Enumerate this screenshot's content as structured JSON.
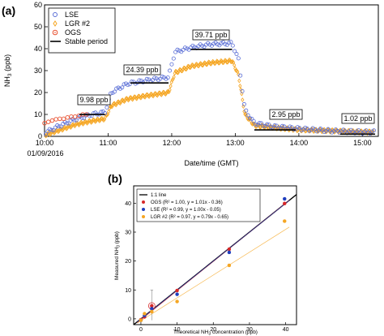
{
  "chart_data": [
    {
      "panel": "(a)",
      "type": "scatter",
      "xlabel": "Date/time (GMT)",
      "ylabel": "NH3 (ppb)",
      "xlim": [
        10.0,
        15.25
      ],
      "ylim": [
        0,
        60
      ],
      "x_ticks": [
        "10:00",
        "11:00",
        "12:00",
        "13:00",
        "14:00",
        "15:00"
      ],
      "x_date_label": "01/09/2016",
      "y_ticks": [
        0,
        10,
        20,
        30,
        40,
        50,
        60
      ],
      "legend": {
        "position": "top-left",
        "entries": [
          "LSE",
          "LGR #2",
          "OGS",
          "Stable period"
        ]
      },
      "series": [
        {
          "name": "LSE",
          "color": "#5b6fd6",
          "marker": "open-circle",
          "x": [
            10.0,
            10.25,
            10.5,
            10.75,
            10.95,
            11.05,
            11.3,
            11.6,
            11.95,
            12.05,
            12.3,
            12.6,
            12.95,
            13.05,
            13.15,
            13.3,
            13.6,
            14.0,
            14.5,
            15.0,
            15.15
          ],
          "y": [
            1.5,
            5,
            8,
            10,
            11,
            20,
            24,
            25.5,
            27,
            38.5,
            40.5,
            42,
            42.5,
            35,
            12,
            6,
            4.5,
            3.5,
            2.5,
            2,
            2
          ]
        },
        {
          "name": "LGR #2",
          "color": "#f5a623",
          "marker": "open-diamond",
          "x": [
            10.0,
            10.25,
            10.5,
            10.75,
            10.95,
            11.05,
            11.3,
            11.6,
            11.95,
            12.05,
            12.3,
            12.6,
            12.95,
            13.05,
            13.15,
            13.3,
            13.6,
            14.0,
            14.5,
            15.0,
            15.15
          ],
          "y": [
            0.5,
            3,
            5.5,
            7,
            8,
            14,
            17,
            18.5,
            20,
            29,
            32,
            33.5,
            34.5,
            28,
            10,
            5,
            4,
            3,
            2.5,
            2,
            2
          ]
        },
        {
          "name": "OGS",
          "color": "#e8502f",
          "marker": "open-circle-dot",
          "x": [
            10.0,
            10.1,
            10.2,
            10.3,
            10.4,
            10.5,
            10.6,
            10.7
          ],
          "y": [
            6,
            7,
            8,
            8,
            9,
            9,
            10,
            10
          ]
        },
        {
          "name": "Stable period",
          "color": "#000000",
          "marker": "line",
          "segments": [
            [
              10.55,
              10.95,
              9.98
            ],
            [
              11.35,
              11.95,
              24.39
            ],
            [
              12.3,
              12.95,
              39.71
            ],
            [
              13.3,
              13.95,
              2.95
            ],
            [
              14.65,
              15.2,
              1.02
            ]
          ]
        }
      ],
      "annotations": [
        "9.98 ppb",
        "24.39 ppb",
        "39.71 ppb",
        "2.95 ppb",
        "1.02 ppb"
      ]
    },
    {
      "panel": "(b)",
      "type": "scatter",
      "xlabel": "Theoretical NH3 concentration (ppb)",
      "ylabel": "Measured NH3 (ppb)",
      "xlim": [
        -2,
        43
      ],
      "ylim": [
        -2,
        46
      ],
      "x_ticks": [
        0,
        10,
        20,
        30,
        40
      ],
      "y_ticks": [
        0,
        10,
        20,
        30,
        40
      ],
      "legend": {
        "position": "top-left",
        "entries": [
          "1:1 line",
          "OGS (R² = 1.00, y = 1.01x - 0.36)",
          "LSE (R² = 0.99, y = 1.00x - 0.05)",
          "LGR #2 (R² = 0.97, y = 0.79x - 0.65)"
        ]
      },
      "series": [
        {
          "name": "1:1 line",
          "color": "#000000",
          "type": "line",
          "x": [
            -2,
            43
          ],
          "y": [
            -2,
            43
          ]
        },
        {
          "name": "OGS",
          "color": "#d62728",
          "x": [
            0,
            1,
            3,
            10,
            24.4,
            39.7
          ],
          "y": [
            -0.3,
            0.7,
            4.5,
            9.8,
            24.1,
            39.9
          ],
          "fit": {
            "slope": 1.01,
            "intercept": -0.36
          }
        },
        {
          "name": "LSE",
          "color": "#1f3fbf",
          "x": [
            0,
            1,
            3,
            10,
            24.4,
            39.7
          ],
          "y": [
            -0.5,
            1.2,
            3.5,
            8.5,
            23,
            41.5
          ],
          "fit": {
            "slope": 1.0,
            "intercept": -0.05
          }
        },
        {
          "name": "LGR #2",
          "color": "#f5a623",
          "x": [
            0,
            1,
            3,
            10,
            24.4,
            39.7
          ],
          "y": [
            -0.5,
            1.8,
            2.5,
            6,
            18.5,
            33.8
          ],
          "fit": {
            "slope": 0.79,
            "intercept": -0.65
          }
        }
      ]
    }
  ],
  "text": {
    "panel_a": "(a)",
    "panel_b": "(b)",
    "a_xlabel": "Date/time (GMT)",
    "a_ylabel_pre": "NH",
    "a_ylabel_sub": "3",
    "a_ylabel_post": " (ppb)",
    "a_date": "01/09/2016",
    "b_xlabel_pre": "Theoretical NH",
    "b_xlabel_sub": "3",
    "b_xlabel_post": " concentration (ppb)",
    "b_ylabel_pre": "Measured NH",
    "b_ylabel_sub": "3",
    "b_ylabel_post": " (ppb)"
  }
}
